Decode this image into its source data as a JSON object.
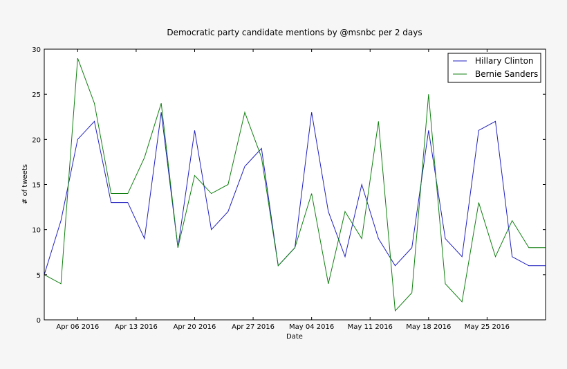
{
  "chart_data": {
    "type": "line",
    "title": "Democratic party candidate mentions by @msnbc per 2 days",
    "xlabel": "Date",
    "ylabel": "# of tweets",
    "ylim": [
      0,
      30
    ],
    "yticks": [
      0,
      5,
      10,
      15,
      20,
      25,
      30
    ],
    "x": [
      "2016-04-02",
      "2016-04-04",
      "2016-04-06",
      "2016-04-08",
      "2016-04-10",
      "2016-04-12",
      "2016-04-14",
      "2016-04-16",
      "2016-04-18",
      "2016-04-20",
      "2016-04-22",
      "2016-04-24",
      "2016-04-26",
      "2016-04-28",
      "2016-04-30",
      "2016-05-02",
      "2016-05-04",
      "2016-05-06",
      "2016-05-08",
      "2016-05-10",
      "2016-05-12",
      "2016-05-14",
      "2016-05-16",
      "2016-05-18",
      "2016-05-20",
      "2016-05-22",
      "2016-05-24",
      "2016-05-26",
      "2016-05-28",
      "2016-05-30",
      "2016-06-01"
    ],
    "xlim": [
      "2016-04-02",
      "2016-06-01"
    ],
    "xticks": [
      {
        "date": "2016-04-06",
        "label": "Apr 06 2016"
      },
      {
        "date": "2016-04-13",
        "label": "Apr 13 2016"
      },
      {
        "date": "2016-04-20",
        "label": "Apr 20 2016"
      },
      {
        "date": "2016-04-27",
        "label": "Apr 27 2016"
      },
      {
        "date": "2016-05-04",
        "label": "May 04 2016"
      },
      {
        "date": "2016-05-11",
        "label": "May 11 2016"
      },
      {
        "date": "2016-05-18",
        "label": "May 18 2016"
      },
      {
        "date": "2016-05-25",
        "label": "May 25 2016"
      }
    ],
    "series": [
      {
        "name": "Hillary Clinton",
        "color": "#1f1fbf",
        "values": [
          5,
          11,
          20,
          22,
          13,
          13,
          9,
          23,
          8,
          21,
          10,
          12,
          17,
          19,
          6,
          8,
          23,
          12,
          7,
          15,
          9,
          6,
          8,
          21,
          9,
          7,
          21,
          22,
          7,
          6,
          6
        ]
      },
      {
        "name": "Bernie Sanders",
        "color": "#117f11",
        "values": [
          5,
          4,
          29,
          24,
          14,
          14,
          18,
          24,
          8,
          16,
          14,
          15,
          23,
          18,
          6,
          8,
          14,
          4,
          12,
          9,
          22,
          1,
          3,
          25,
          4,
          2,
          13,
          7,
          11,
          8,
          8
        ]
      }
    ],
    "legend": "top-right",
    "grid": false
  }
}
